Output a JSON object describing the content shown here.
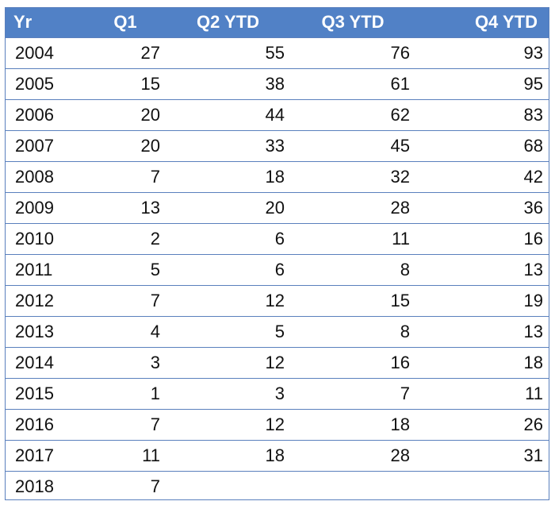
{
  "chart_data": {
    "type": "table",
    "columns": [
      "Yr",
      "Q1",
      "Q2 YTD",
      "Q3 YTD",
      "Q4 YTD"
    ],
    "rows": [
      [
        "2004",
        "27",
        "55",
        "76",
        "93"
      ],
      [
        "2005",
        "15",
        "38",
        "61",
        "95"
      ],
      [
        "2006",
        "20",
        "44",
        "62",
        "83"
      ],
      [
        "2007",
        "20",
        "33",
        "45",
        "68"
      ],
      [
        "2008",
        "7",
        "18",
        "32",
        "42"
      ],
      [
        "2009",
        "13",
        "20",
        "28",
        "36"
      ],
      [
        "2010",
        "2",
        "6",
        "11",
        "16"
      ],
      [
        "2011",
        "5",
        "6",
        "8",
        "13"
      ],
      [
        "2012",
        "7",
        "12",
        "15",
        "19"
      ],
      [
        "2013",
        "4",
        "5",
        "8",
        "13"
      ],
      [
        "2014",
        "3",
        "12",
        "16",
        "18"
      ],
      [
        "2015",
        "1",
        "3",
        "7",
        "11"
      ],
      [
        "2016",
        "7",
        "12",
        "18",
        "26"
      ],
      [
        "2017",
        "11",
        "18",
        "28",
        "31"
      ],
      [
        "2018",
        "7",
        "",
        "",
        ""
      ]
    ],
    "header_color": "#5181c6",
    "header_text_color": "#ffffff",
    "border_color": "#5a80bd"
  }
}
